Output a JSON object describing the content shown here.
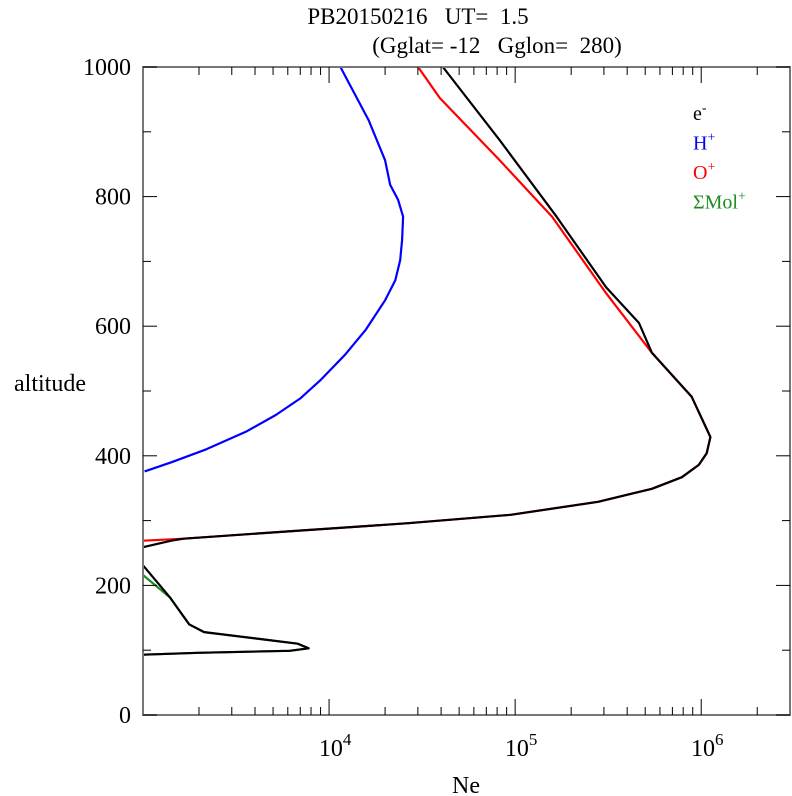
{
  "chart_data": {
    "type": "line",
    "title_line1": "PB20150216   UT=  1.5",
    "title_line2": "(Gglat= -12   Gglon=  280)",
    "xlabel": "Ne",
    "ylabel": "altitude",
    "xscale": "log",
    "xlim": [
      1000,
      3000000
    ],
    "ylim": [
      0,
      1000
    ],
    "yticks": [
      0,
      200,
      400,
      600,
      800,
      1000
    ],
    "ytick_labels": [
      "0",
      "200",
      "400",
      "600",
      "800",
      "1000"
    ],
    "xticks": [
      10000,
      100000,
      1000000
    ],
    "xtick_labels": [
      {
        "base": "10",
        "exp": "4"
      },
      {
        "base": "10",
        "exp": "5"
      },
      {
        "base": "10",
        "exp": "6"
      }
    ],
    "legend_position": "top-right",
    "series": [
      {
        "name": "e-",
        "label_base": "e",
        "label_sup": "-",
        "color": "#000000",
        "segments": [
          [
            [
              40900,
              1000
            ],
            [
              82600,
              887
            ],
            [
              167000,
              769
            ],
            [
              308000,
              660
            ],
            [
              463000,
              605
            ],
            [
              543000,
              559
            ],
            [
              889000,
              491
            ],
            [
              1120000,
              429
            ],
            [
              1070000,
              404
            ],
            [
              970000,
              386
            ],
            [
              787000,
              367
            ],
            [
              543000,
              349
            ],
            [
              279000,
              329
            ],
            [
              94600,
              309
            ],
            [
              26600,
              296
            ],
            [
              6460,
              284
            ],
            [
              1650,
              272
            ],
            [
              1420,
              269
            ],
            [
              1000,
              259
            ]
          ],
          [
            [
              1000,
              231
            ],
            [
              1400,
              181
            ],
            [
              1770,
              140
            ],
            [
              2130,
              128
            ],
            [
              6790,
              110
            ],
            [
              7760,
              103
            ],
            [
              6150,
              99
            ],
            [
              1980,
              96
            ],
            [
              1000,
              93
            ]
          ]
        ]
      },
      {
        "name": "H+",
        "label_base": "H",
        "label_sup": "+",
        "color": "#0000ff",
        "segments": [
          [
            [
              1020,
              376
            ],
            [
              1420,
              390
            ],
            [
              2190,
              410
            ],
            [
              3570,
              437
            ],
            [
              5170,
              463
            ],
            [
              7040,
              489
            ],
            [
              9010,
              517
            ],
            [
              12200,
              556
            ],
            [
              15700,
              594
            ],
            [
              20000,
              640
            ],
            [
              22700,
              671
            ],
            [
              24100,
              702
            ],
            [
              24700,
              733
            ],
            [
              25000,
              769
            ],
            [
              23500,
              795
            ],
            [
              21300,
              818
            ],
            [
              20000,
              856
            ],
            [
              16300,
              918
            ],
            [
              11500,
              1000
            ]
          ]
        ]
      },
      {
        "name": "O+",
        "label_base": "O",
        "label_sup": "+",
        "color": "#ff0000",
        "segments": [
          [
            [
              30100,
              1000
            ],
            [
              39400,
              952
            ],
            [
              82600,
              856
            ],
            [
              158000,
              769
            ],
            [
              308000,
              651
            ],
            [
              543000,
              559
            ],
            [
              889000,
              491
            ],
            [
              1120000,
              429
            ],
            [
              1070000,
              404
            ],
            [
              970000,
              386
            ],
            [
              787000,
              367
            ],
            [
              543000,
              349
            ],
            [
              279000,
              329
            ],
            [
              94600,
              309
            ],
            [
              26600,
              296
            ],
            [
              6460,
              284
            ],
            [
              1650,
              272
            ],
            [
              1000,
              269
            ]
          ]
        ]
      },
      {
        "name": "ΣMol+",
        "label_base": "ΣMol",
        "label_sup": "+",
        "color": "#1f8c1f",
        "segments": [
          [
            [
              1000,
              216
            ],
            [
              1400,
              181
            ],
            [
              1770,
              140
            ],
            [
              2130,
              128
            ],
            [
              6790,
              110
            ],
            [
              7760,
              103
            ],
            [
              6150,
              99
            ],
            [
              1980,
              96
            ],
            [
              1000,
              93
            ]
          ]
        ]
      }
    ]
  }
}
